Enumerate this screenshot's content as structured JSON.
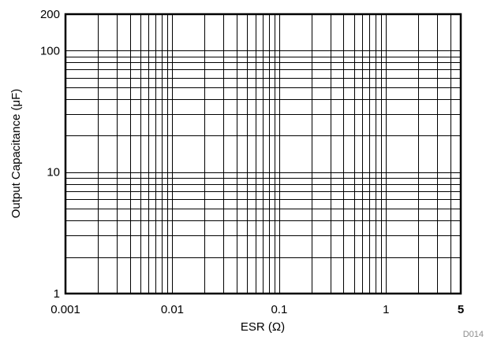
{
  "chart_data": {
    "type": "line",
    "xlabel": "ESR (Ω)",
    "ylabel": "Output Capacitance (μF)",
    "x_scale": "log",
    "y_scale": "log",
    "xlim": [
      0.001,
      5
    ],
    "ylim": [
      1,
      200
    ],
    "x_ticks": [
      {
        "value": 0.001,
        "label": "0.001"
      },
      {
        "value": 0.01,
        "label": "0.01"
      },
      {
        "value": 0.1,
        "label": "0.1"
      },
      {
        "value": 1,
        "label": "1"
      },
      {
        "value": 5,
        "label": "5",
        "bold": true
      }
    ],
    "y_ticks": [
      {
        "value": 1,
        "label": "1"
      },
      {
        "value": 10,
        "label": "10"
      },
      {
        "value": 100,
        "label": "100"
      },
      {
        "value": 200,
        "label": "200"
      }
    ],
    "grid": true,
    "grid_minor": true,
    "series": [],
    "figure_id": "D014"
  }
}
